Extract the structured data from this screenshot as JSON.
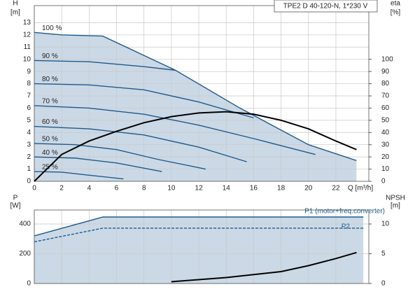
{
  "chart_data": [
    {
      "type": "line",
      "title": "TPE2 D 40-120-N, 1*230 V",
      "ylabel": [
        "H",
        "[m]"
      ],
      "y2label": [
        "eta",
        "[%]"
      ],
      "xlabel": "Q [m³/h]",
      "xlim": [
        0,
        24.4
      ],
      "xticks": [
        0,
        2,
        4,
        6,
        8,
        10,
        12,
        14,
        16,
        18,
        20,
        22
      ],
      "ylim": [
        0,
        14.4
      ],
      "yticks": [
        0,
        1,
        2,
        3,
        4,
        5,
        6,
        7,
        8,
        9,
        10,
        11,
        12,
        13
      ],
      "y2lim": [
        0,
        144
      ],
      "y2ticks": [
        0,
        10,
        20,
        30,
        40,
        50,
        60,
        70,
        80,
        90,
        100
      ],
      "grid": true,
      "area_color": "#cbd9e6",
      "series": [
        {
          "name": "100 %",
          "color": "#1f5a8c",
          "x": [
            0,
            2,
            5,
            10.3,
            15,
            20,
            23.5
          ],
          "values": [
            12.2,
            12,
            11.9,
            9.1,
            6,
            3,
            1.7
          ]
        },
        {
          "name": "90 %",
          "color": "#1f5a8c",
          "x": [
            0,
            4,
            8,
            10.3
          ],
          "values": [
            9.9,
            9.8,
            9.4,
            9.1
          ]
        },
        {
          "name": "80 %",
          "color": "#1f5a8c",
          "x": [
            0,
            4,
            8,
            12,
            16
          ],
          "values": [
            8,
            7.9,
            7.5,
            6.5,
            5.2
          ]
        },
        {
          "name": "70 %",
          "color": "#1f5a8c",
          "x": [
            0,
            4,
            8,
            12,
            16,
            20.5
          ],
          "values": [
            6.2,
            6,
            5.5,
            4.6,
            3.5,
            2.2
          ]
        },
        {
          "name": "60 %",
          "color": "#1f5a8c",
          "x": [
            0,
            4,
            8,
            12,
            15.5
          ],
          "values": [
            4.5,
            4.3,
            3.8,
            2.8,
            1.6
          ]
        },
        {
          "name": "50 %",
          "color": "#1f5a8c",
          "x": [
            0,
            3,
            6,
            9,
            12.5
          ],
          "values": [
            3.1,
            3,
            2.6,
            1.8,
            1
          ]
        },
        {
          "name": "40 %",
          "color": "#1f5a8c",
          "x": [
            0,
            3,
            6,
            9.3
          ],
          "values": [
            2,
            1.9,
            1.5,
            0.8
          ]
        },
        {
          "name": "25 %",
          "color": "#1f5a8c",
          "x": [
            0,
            2,
            4,
            6.5
          ],
          "values": [
            0.8,
            0.75,
            0.5,
            0.2
          ]
        },
        {
          "axis": "y2",
          "color": "#000000",
          "x": [
            0,
            2,
            4,
            6,
            8,
            10,
            12,
            14,
            16,
            18,
            20,
            22,
            23.5
          ],
          "values": [
            0,
            22,
            33,
            41,
            48,
            53,
            56,
            57,
            55,
            50,
            43,
            33,
            26
          ]
        }
      ]
    },
    {
      "type": "line",
      "ylabel": [
        "P",
        "[W]"
      ],
      "y2label": [
        "NPSH",
        "[m]"
      ],
      "xlim": [
        0,
        24.4
      ],
      "xticks": [
        0,
        2,
        4,
        6,
        8,
        10,
        12,
        14,
        16,
        18,
        20,
        22
      ],
      "ylim": [
        0,
        494
      ],
      "yticks": [
        0,
        200,
        400
      ],
      "y2lim": [
        0,
        12.35
      ],
      "y2ticks": [
        0,
        5,
        10
      ],
      "grid": true,
      "area_color": "#cbd9e6",
      "series": [
        {
          "name": "P1 (motor+freq.converter)",
          "color": "#1f5a8c",
          "x": [
            0,
            5,
            24
          ],
          "values": [
            320,
            447,
            447
          ]
        },
        {
          "name": "P2",
          "color": "#1f5a8c",
          "x": [
            0,
            5,
            24
          ],
          "values": [
            280,
            372,
            372
          ]
        },
        {
          "axis": "y2",
          "color": "#000000",
          "x": [
            10,
            14,
            18,
            20,
            22,
            23.5
          ],
          "values": [
            0.3,
            1,
            2,
            3,
            4.2,
            5.2
          ]
        }
      ]
    }
  ]
}
